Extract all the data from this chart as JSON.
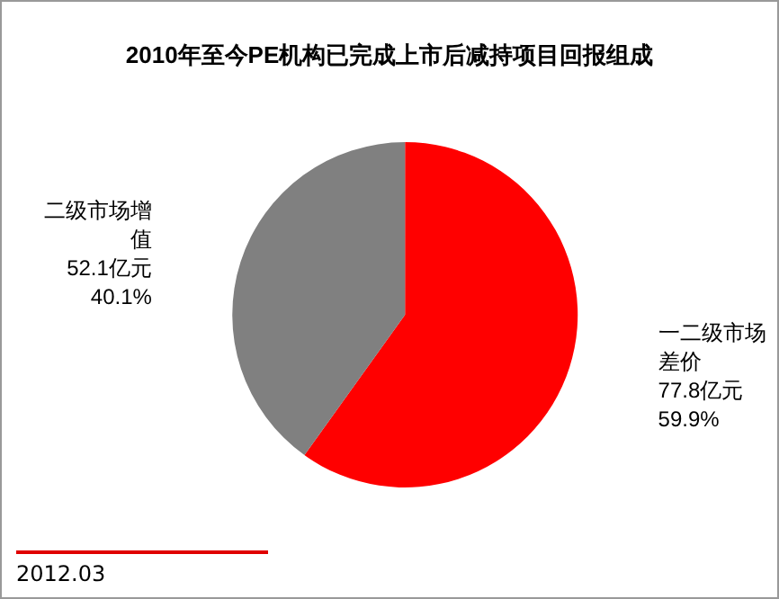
{
  "chart_data": {
    "type": "pie",
    "title": "2010年至今PE机构已完成上市后减持项目回报组成",
    "categories": [
      "一二级市场差价",
      "二级市场增值"
    ],
    "values": [
      77.8,
      52.1
    ],
    "colors": [
      "#ff0000",
      "#808080"
    ],
    "value_labels": [
      "77.8亿元\n59.9%",
      "52.1亿元\n40.1%"
    ],
    "legend": false,
    "annotations": [
      "2012.03"
    ]
  }
}
